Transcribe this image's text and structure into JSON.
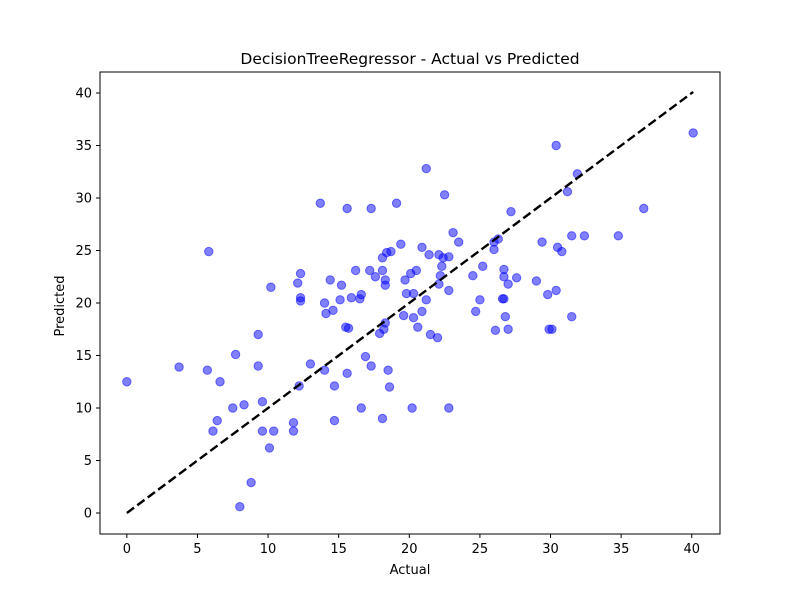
{
  "chart_data": {
    "type": "scatter",
    "title": "DecisionTreeRegressor - Actual vs Predicted",
    "xlabel": "Actual",
    "ylabel": "Predicted",
    "xlim": [
      -1.9,
      42.0
    ],
    "ylim": [
      -2.0,
      42.0
    ],
    "xticks": [
      0,
      5,
      10,
      15,
      20,
      25,
      30,
      35,
      40
    ],
    "yticks": [
      0,
      5,
      10,
      15,
      20,
      25,
      30,
      35,
      40
    ],
    "grid": false,
    "colors": {
      "points": "#0000ff",
      "reference_line": "#000000"
    },
    "reference_line": {
      "style": "dashed",
      "from": [
        0,
        0
      ],
      "to": [
        40.1,
        40.1
      ]
    },
    "series": [
      {
        "points": [
          [
            0,
            12.5
          ],
          [
            3.7,
            13.9
          ],
          [
            5.7,
            13.6
          ],
          [
            5.8,
            24.9
          ],
          [
            6.1,
            7.8
          ],
          [
            6.4,
            8.8
          ],
          [
            6.6,
            12.5
          ],
          [
            7.5,
            10.0
          ],
          [
            7.7,
            15.1
          ],
          [
            8.0,
            0.6
          ],
          [
            8.3,
            10.3
          ],
          [
            8.8,
            2.9
          ],
          [
            9.3,
            17.0
          ],
          [
            9.3,
            14.0
          ],
          [
            9.6,
            10.6
          ],
          [
            9.6,
            7.8
          ],
          [
            10.1,
            6.2
          ],
          [
            10.2,
            21.5
          ],
          [
            10.4,
            7.8
          ],
          [
            11.8,
            7.8
          ],
          [
            11.8,
            8.6
          ],
          [
            12.1,
            21.9
          ],
          [
            12.2,
            12.1
          ],
          [
            12.3,
            22.8
          ],
          [
            12.3,
            20.5
          ],
          [
            12.3,
            20.2
          ],
          [
            13.0,
            14.2
          ],
          [
            13.7,
            29.5
          ],
          [
            14.0,
            20.0
          ],
          [
            14.0,
            13.6
          ],
          [
            14.1,
            19.0
          ],
          [
            14.4,
            22.2
          ],
          [
            14.6,
            19.3
          ],
          [
            14.7,
            8.8
          ],
          [
            14.7,
            12.1
          ],
          [
            15.2,
            21.7
          ],
          [
            15.1,
            20.3
          ],
          [
            15.5,
            17.7
          ],
          [
            15.6,
            29.0
          ],
          [
            15.7,
            17.6
          ],
          [
            15.6,
            13.3
          ],
          [
            15.9,
            20.5
          ],
          [
            16.2,
            23.1
          ],
          [
            16.5,
            20.4
          ],
          [
            16.6,
            20.8
          ],
          [
            16.6,
            10.0
          ],
          [
            16.9,
            14.9
          ],
          [
            17.2,
            23.1
          ],
          [
            17.3,
            14.0
          ],
          [
            17.3,
            29.0
          ],
          [
            17.6,
            22.5
          ],
          [
            17.9,
            17.1
          ],
          [
            18.1,
            24.3
          ],
          [
            18.1,
            23.1
          ],
          [
            18.1,
            9.0
          ],
          [
            18.2,
            17.5
          ],
          [
            18.3,
            22.2
          ],
          [
            18.3,
            21.7
          ],
          [
            18.3,
            18.1
          ],
          [
            18.4,
            24.8
          ],
          [
            18.5,
            13.6
          ],
          [
            18.6,
            12.0
          ],
          [
            18.7,
            24.9
          ],
          [
            19.1,
            29.5
          ],
          [
            19.4,
            25.6
          ],
          [
            19.6,
            18.8
          ],
          [
            19.7,
            22.2
          ],
          [
            19.8,
            20.9
          ],
          [
            20.1,
            22.8
          ],
          [
            20.2,
            10.0
          ],
          [
            20.3,
            18.6
          ],
          [
            20.3,
            20.9
          ],
          [
            20.5,
            23.1
          ],
          [
            20.6,
            17.7
          ],
          [
            20.9,
            25.3
          ],
          [
            20.9,
            19.2
          ],
          [
            21.2,
            32.8
          ],
          [
            21.2,
            20.3
          ],
          [
            21.4,
            24.6
          ],
          [
            21.5,
            17.0
          ],
          [
            22.0,
            16.7
          ],
          [
            22.1,
            24.6
          ],
          [
            22.1,
            21.8
          ],
          [
            22.2,
            22.6
          ],
          [
            22.3,
            23.5
          ],
          [
            22.4,
            24.3
          ],
          [
            22.5,
            30.3
          ],
          [
            22.8,
            24.4
          ],
          [
            22.8,
            21.2
          ],
          [
            22.8,
            10.0
          ],
          [
            23.1,
            26.7
          ],
          [
            23.5,
            25.8
          ],
          [
            24.5,
            22.6
          ],
          [
            24.7,
            19.2
          ],
          [
            25.0,
            20.3
          ],
          [
            25.2,
            23.5
          ],
          [
            26.0,
            25.8
          ],
          [
            26.1,
            17.4
          ],
          [
            26.3,
            26.1
          ],
          [
            26.0,
            25.1
          ],
          [
            26.6,
            20.4
          ],
          [
            26.7,
            20.4
          ],
          [
            26.7,
            22.5
          ],
          [
            26.7,
            23.2
          ],
          [
            26.8,
            18.7
          ],
          [
            27.0,
            17.5
          ],
          [
            27.0,
            21.8
          ],
          [
            27.2,
            28.7
          ],
          [
            27.6,
            22.4
          ],
          [
            29.0,
            22.1
          ],
          [
            29.4,
            25.8
          ],
          [
            29.8,
            20.8
          ],
          [
            29.9,
            17.5
          ],
          [
            30.1,
            17.5
          ],
          [
            30.4,
            35.0
          ],
          [
            30.4,
            21.2
          ],
          [
            30.5,
            25.3
          ],
          [
            30.8,
            24.9
          ],
          [
            31.2,
            30.6
          ],
          [
            31.5,
            26.4
          ],
          [
            31.5,
            18.7
          ],
          [
            31.9,
            32.3
          ],
          [
            32.4,
            26.4
          ],
          [
            34.8,
            26.4
          ],
          [
            36.6,
            29.0
          ],
          [
            40.1,
            36.2
          ]
        ]
      }
    ]
  }
}
